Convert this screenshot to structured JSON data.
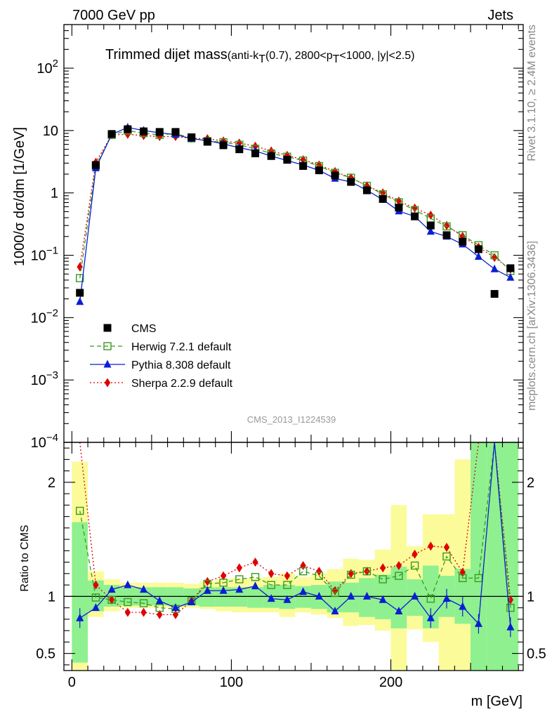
{
  "labels": {
    "top_left": "7000 GeV pp",
    "top_right": "Jets",
    "title_main": "Trimmed dijet mass",
    "title_sub_prefix": "(anti-k",
    "title_sub_sub1": "T",
    "title_sub_mid": "(0.7), 2800<p",
    "title_sub_sub2": "T",
    "title_sub_suffix": "<1000, |y|<2.5)",
    "ylabel_main": "1000/σ dσ/dm [1/GeV]",
    "ylabel_ratio": "Ratio to CMS",
    "xlabel": "m [GeV]",
    "side_rivet": "Rivet 3.1.10, ≥ 2.4M events",
    "side_mcplots": "mcplots.cern.ch [arXiv:1306.3436]",
    "watermark": "CMS_2013_I1224539"
  },
  "colors": {
    "cms": "#000000",
    "herwig": "#3a9a1f",
    "pythia": "#0a1ed2",
    "sherpa": "#e00000",
    "band_inner": "#8ff08f",
    "band_outer": "#fbfb9a"
  },
  "chart_data": [
    {
      "type": "scatter",
      "panel": "main",
      "title": "Trimmed dijet mass(anti-kT(0.7), 2800<pT<1000, |y|<2.5)",
      "xlabel": "",
      "ylabel": "1000/σ dσ/dm [1/GeV]",
      "xlim": [
        -5,
        283
      ],
      "ylim": [
        0.0001,
        500
      ],
      "yscale": "log",
      "y_ticks": [
        {
          "value": 0.0001,
          "label": "10",
          "exp": "−4"
        },
        {
          "value": 0.001,
          "label": "10",
          "exp": "−3"
        },
        {
          "value": 0.01,
          "label": "10",
          "exp": "−2"
        },
        {
          "value": 0.1,
          "label": "10",
          "exp": "−1"
        },
        {
          "value": 1,
          "label": "1",
          "exp": ""
        },
        {
          "value": 10,
          "label": "10",
          "exp": ""
        },
        {
          "value": 100,
          "label": "10",
          "exp": "2"
        }
      ],
      "legend_position": "lower-left",
      "x": [
        5,
        15,
        25,
        35,
        45,
        55,
        65,
        75,
        85,
        95,
        105,
        115,
        125,
        135,
        145,
        155,
        165,
        175,
        185,
        195,
        205,
        215,
        225,
        235,
        245,
        255,
        265,
        275
      ],
      "series": [
        {
          "name": "CMS",
          "style": "marker",
          "values": [
            0.025,
            2.8,
            8.8,
            10.5,
            9.7,
            9.5,
            9.5,
            7.8,
            6.6,
            5.8,
            5.0,
            4.3,
            3.9,
            3.4,
            2.7,
            2.3,
            1.9,
            1.5,
            1.1,
            0.8,
            0.58,
            0.42,
            0.3,
            0.21,
            0.165,
            0.125,
            0.024,
            0.062
          ]
        },
        {
          "name": "Herwig 7.2.1 default",
          "style": "dashed-open-square",
          "values": [
            0.043,
            2.7,
            8.5,
            10.0,
            9.1,
            8.5,
            9.0,
            7.5,
            6.8,
            6.5,
            5.9,
            5.1,
            4.3,
            3.8,
            3.3,
            2.7,
            2.1,
            1.75,
            1.3,
            0.95,
            0.71,
            0.53,
            0.39,
            0.29,
            0.21,
            0.145,
            0.1,
            0.056
          ]
        },
        {
          "name": "Pythia 8.308 default",
          "style": "solid-triangle",
          "values": [
            0.018,
            2.5,
            8.7,
            11.2,
            10.0,
            9.2,
            8.6,
            7.4,
            6.9,
            6.1,
            5.3,
            4.7,
            3.9,
            3.3,
            2.8,
            2.3,
            1.7,
            1.5,
            1.1,
            0.78,
            0.51,
            0.42,
            0.24,
            0.2,
            0.15,
            0.095,
            0.06,
            0.044
          ]
        },
        {
          "name": "Sherpa 2.2.9 default",
          "style": "dotted-diamond",
          "values": [
            0.065,
            3.1,
            8.5,
            8.7,
            8.3,
            8.0,
            8.0,
            7.5,
            7.4,
            6.8,
            6.3,
            5.6,
            4.7,
            4.0,
            3.4,
            2.8,
            2.2,
            1.75,
            1.3,
            1.0,
            0.74,
            0.57,
            0.44,
            0.3,
            0.2,
            0.135,
            0.092,
            0.06
          ]
        }
      ]
    },
    {
      "type": "line",
      "panel": "ratio",
      "xlabel": "m [GeV]",
      "ylabel": "Ratio to CMS",
      "xlim": [
        -5,
        283
      ],
      "ylim": [
        0.35,
        2.35
      ],
      "x_ticks": [
        0,
        100,
        200
      ],
      "y_ticks": [
        0.5,
        1,
        2
      ],
      "reference_line": 1,
      "bin_width": 10,
      "x": [
        5,
        15,
        25,
        35,
        45,
        55,
        65,
        75,
        85,
        95,
        105,
        115,
        125,
        135,
        145,
        155,
        165,
        175,
        185,
        195,
        205,
        215,
        225,
        235,
        245,
        255,
        265,
        275
      ],
      "band_inner": {
        "low": [
          0.42,
          0.87,
          0.91,
          0.92,
          0.92,
          0.92,
          0.92,
          0.92,
          0.91,
          0.91,
          0.91,
          0.9,
          0.9,
          0.89,
          0.9,
          0.89,
          0.86,
          0.86,
          0.82,
          0.8,
          0.72,
          0.83,
          0.72,
          0.82,
          0.76,
          0.35,
          0.35,
          0.35
        ],
        "high": [
          1.65,
          1.14,
          1.1,
          1.08,
          1.08,
          1.08,
          1.08,
          1.07,
          1.08,
          1.08,
          1.08,
          1.08,
          1.1,
          1.1,
          1.09,
          1.1,
          1.13,
          1.12,
          1.16,
          1.19,
          1.26,
          1.15,
          1.27,
          1.18,
          1.24,
          2.35,
          2.35,
          2.35
        ]
      },
      "band_outer": {
        "low": [
          0.35,
          0.82,
          0.87,
          0.9,
          0.9,
          0.9,
          0.9,
          0.9,
          0.89,
          0.87,
          0.86,
          0.86,
          0.86,
          0.82,
          0.86,
          0.84,
          0.81,
          0.74,
          0.75,
          0.7,
          0.35,
          0.71,
          0.6,
          0.35,
          0.35,
          0.35,
          0.35,
          0.35
        ],
        "high": [
          2.18,
          1.22,
          1.15,
          1.12,
          1.12,
          1.12,
          1.12,
          1.11,
          1.13,
          1.15,
          1.16,
          1.16,
          1.17,
          1.2,
          1.17,
          1.2,
          1.24,
          1.33,
          1.32,
          1.41,
          1.8,
          1.44,
          1.72,
          1.72,
          2.2,
          2.35,
          2.35,
          2.35
        ]
      },
      "series": [
        {
          "name": "Herwig 7.2.1 default",
          "values": [
            1.75,
            0.99,
            0.97,
            0.95,
            0.94,
            0.9,
            0.89,
            0.96,
            1.11,
            1.12,
            1.15,
            1.17,
            1.1,
            1.1,
            1.22,
            1.18,
            1.03,
            1.19,
            1.22,
            1.15,
            1.18,
            1.27,
            0.98,
            1.35,
            1.16,
            1.16,
            2.35,
            0.9
          ]
        },
        {
          "name": "Pythia 8.308 default",
          "values": [
            0.81,
            0.9,
            1.06,
            1.1,
            1.06,
            0.96,
            0.9,
            0.95,
            1.05,
            1.05,
            1.06,
            1.09,
            0.98,
            0.97,
            1.04,
            1.0,
            0.87,
            1.0,
            1.0,
            0.97,
            0.87,
            1.0,
            0.81,
            0.98,
            0.91,
            0.76,
            2.35,
            0.73
          ]
        },
        {
          "name": "Sherpa 2.2.9 default",
          "values": [
            2.35,
            1.1,
            0.97,
            0.86,
            0.86,
            0.84,
            0.84,
            0.96,
            1.13,
            1.18,
            1.25,
            1.3,
            1.2,
            1.18,
            1.27,
            1.22,
            1.05,
            1.2,
            1.22,
            1.25,
            1.27,
            1.37,
            1.44,
            1.43,
            1.21,
            2.35,
            2.35,
            0.97
          ]
        }
      ]
    }
  ]
}
